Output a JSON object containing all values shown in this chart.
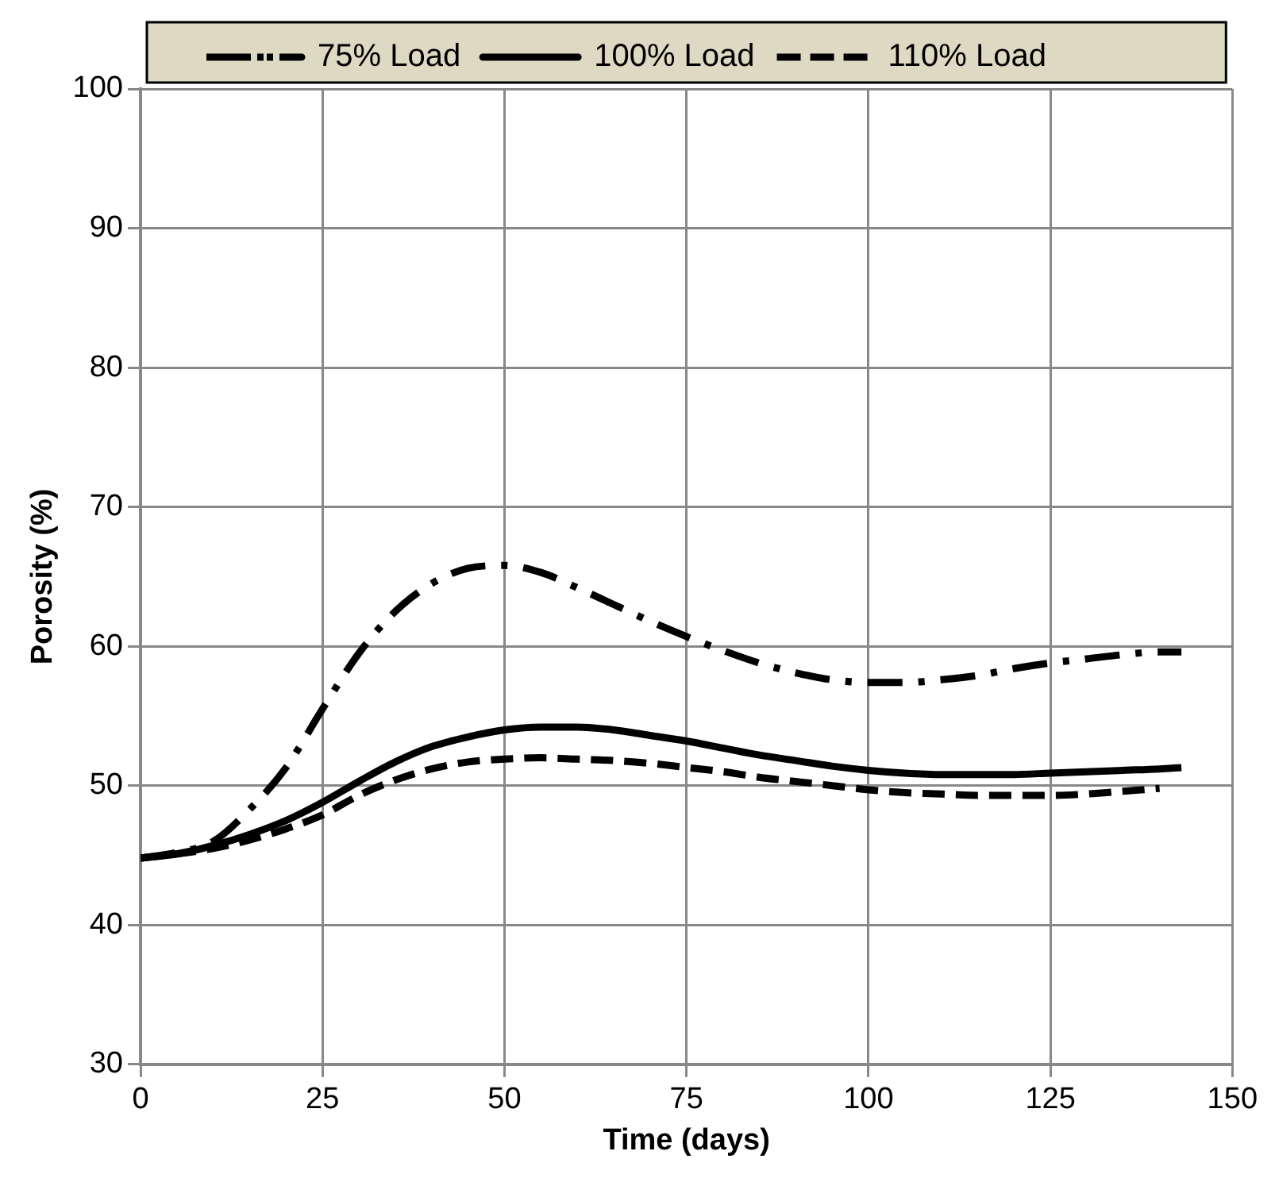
{
  "chart_data": {
    "type": "line",
    "xlabel": "Time (days)",
    "ylabel": "Porosity (%)",
    "xlim": [
      0,
      150
    ],
    "xticks": [
      0,
      25,
      50,
      75,
      100,
      125,
      150
    ],
    "ylim": [
      30,
      100
    ],
    "yticks": [
      30,
      40,
      50,
      60,
      70,
      80,
      90,
      100
    ],
    "grid": true,
    "legend": "top",
    "marker": "none",
    "x": [
      0,
      5,
      10,
      15,
      20,
      25,
      30,
      35,
      40,
      45,
      50,
      55,
      60,
      65,
      70,
      75,
      80,
      85,
      90,
      95,
      100,
      105,
      110,
      115,
      120,
      125,
      130,
      135,
      140,
      143
    ],
    "series": [
      {
        "name": "75% Load",
        "color": "#000000",
        "line_style": "dashdot",
        "values": [
          44.8,
          45.2,
          46,
          48.3,
          51.3,
          55.5,
          59.5,
          62.5,
          64.5,
          65.6,
          65.8,
          65.3,
          64.2,
          63,
          61.8,
          60.7,
          59.7,
          58.8,
          58.1,
          57.6,
          57.4,
          57.4,
          57.6,
          57.9,
          58.4,
          58.8,
          59.1,
          59.4,
          59.6,
          59.6
        ]
      },
      {
        "name": "100% Load",
        "color": "#000000",
        "line_style": "solid",
        "values": [
          44.8,
          45.1,
          45.7,
          46.5,
          47.5,
          48.8,
          50.3,
          51.7,
          52.8,
          53.5,
          54,
          54.2,
          54.2,
          54,
          53.6,
          53.2,
          52.7,
          52.2,
          51.8,
          51.4,
          51.1,
          50.9,
          50.8,
          50.8,
          50.8,
          50.9,
          51,
          51.1,
          51.2,
          51.3
        ]
      },
      {
        "name": "110% Load",
        "color": "#000000",
        "line_style": "dashed",
        "values": [
          44.8,
          45.1,
          45.5,
          46.1,
          46.9,
          47.9,
          49.3,
          50.4,
          51.2,
          51.7,
          51.9,
          52,
          51.9,
          51.8,
          51.6,
          51.3,
          51,
          50.6,
          50.3,
          50,
          49.7,
          49.5,
          49.4,
          49.3,
          49.3,
          49.3,
          49.4,
          49.6,
          49.8,
          null
        ]
      }
    ]
  }
}
